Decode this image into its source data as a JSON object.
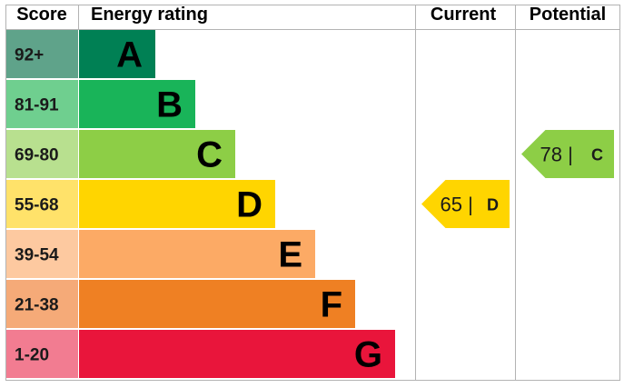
{
  "headers": {
    "score": "Score",
    "energy_rating": "Energy rating",
    "current": "Current",
    "potential": "Potential"
  },
  "chart_data": {
    "type": "bar",
    "bands": [
      {
        "score": "92+",
        "letter": "A",
        "color": "#008054",
        "score_color": "#5fa38a"
      },
      {
        "score": "81-91",
        "letter": "B",
        "color": "#19b459",
        "score_color": "#6fcf8f"
      },
      {
        "score": "69-80",
        "letter": "C",
        "color": "#8dce46",
        "score_color": "#b8e08f"
      },
      {
        "score": "55-68",
        "letter": "D",
        "color": "#ffd500",
        "score_color": "#ffe26a"
      },
      {
        "score": "39-54",
        "letter": "E",
        "color": "#fcaa65",
        "score_color": "#fdc9a0"
      },
      {
        "score": "21-38",
        "letter": "F",
        "color": "#ef8023",
        "score_color": "#f5aa78"
      },
      {
        "score": "1-20",
        "letter": "G",
        "color": "#e9153b",
        "score_color": "#f27c91"
      }
    ],
    "current": {
      "value": 65,
      "band": "D",
      "label": "65 |",
      "color": "#ffd500"
    },
    "potential": {
      "value": 78,
      "band": "C",
      "label": "78 |",
      "color": "#8dce46"
    }
  }
}
